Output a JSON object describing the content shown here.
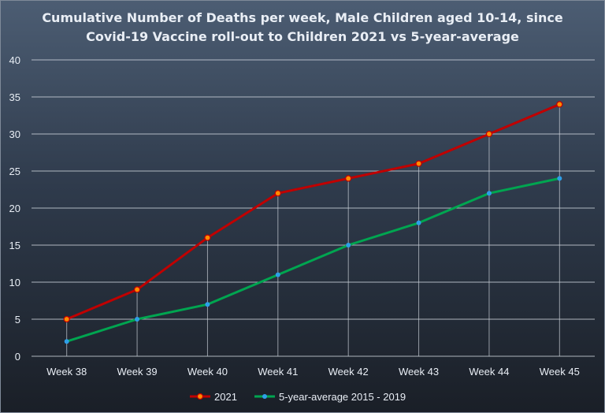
{
  "chart_data": {
    "type": "line",
    "title_lines": [
      "Cumulative Number of Deaths per week, Male Children aged 10-14, since",
      "Covid-19 Vaccine roll-out to Children 2021 vs 5-year-average"
    ],
    "categories": [
      "Week 38",
      "Week 39",
      "Week 40",
      "Week 41",
      "Week 42",
      "Week 43",
      "Week 44",
      "Week 45"
    ],
    "series": [
      {
        "name": "2021",
        "color": "#c00000",
        "marker_color": "#ff8c00",
        "values": [
          5,
          9,
          16,
          22,
          24,
          26,
          30,
          34
        ]
      },
      {
        "name": "5-year-average 2015 - 2019",
        "color": "#00a550",
        "marker_color": "#2e9fe8",
        "values": [
          2,
          5,
          7,
          11,
          15,
          18,
          22,
          24
        ]
      }
    ],
    "ylim": [
      0,
      40
    ],
    "yticks": [
      0,
      5,
      10,
      15,
      20,
      25,
      30,
      35,
      40
    ],
    "grid": true,
    "legend_position": "bottom",
    "colors": {
      "gridline": "#c8ced6",
      "text": "#e9eef5"
    }
  }
}
